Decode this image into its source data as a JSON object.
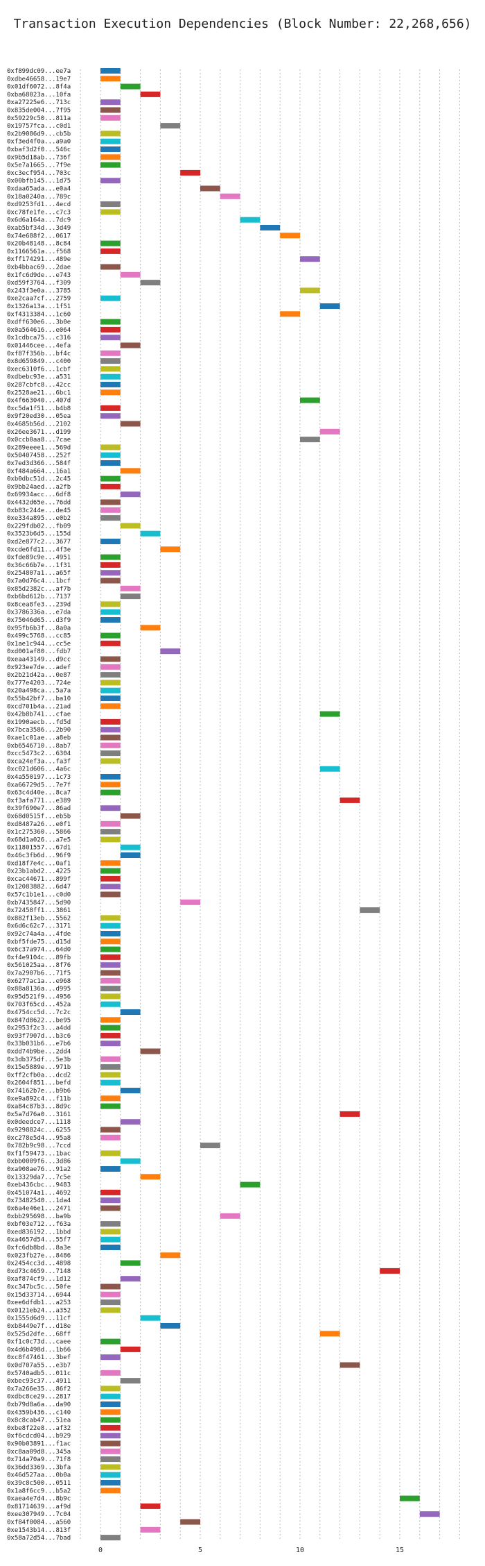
{
  "chart_data": {
    "type": "gantt",
    "title": "Transaction Execution Dependencies (Block Number: 22,268,656)",
    "xlim": [
      -2,
      18
    ],
    "xticks": [
      0,
      5,
      10,
      15
    ],
    "grid": "vertical dotted",
    "colors": [
      "#1f77b4",
      "#ff7f0e",
      "#2ca02c",
      "#d62728",
      "#9467bd",
      "#8c564b",
      "#e377c2",
      "#7f7f7f",
      "#bcbd22",
      "#17becf"
    ],
    "rows": [
      {
        "label": "0xf899dc09...ee7a",
        "start": 0,
        "color": 0
      },
      {
        "label": "0xdbe46658...19e7",
        "start": 0,
        "color": 1
      },
      {
        "label": "0x01df6072...8f4a",
        "start": 1,
        "color": 2
      },
      {
        "label": "0xba68023a...10fa",
        "start": 2,
        "color": 3
      },
      {
        "label": "0xa27225e6...713c",
        "start": 0,
        "color": 4
      },
      {
        "label": "0x835de004...7f95",
        "start": 0,
        "color": 5
      },
      {
        "label": "0x59229c50...811a",
        "start": 0,
        "color": 6
      },
      {
        "label": "0x19757fca...c0d1",
        "start": 3,
        "color": 7
      },
      {
        "label": "0x2b9086d9...cb5b",
        "start": 0,
        "color": 8
      },
      {
        "label": "0xf3ed4f0a...a9a0",
        "start": 0,
        "color": 9
      },
      {
        "label": "0xbaf3d2f0...546c",
        "start": 0,
        "color": 0
      },
      {
        "label": "0x9b5d18ab...736f",
        "start": 0,
        "color": 1
      },
      {
        "label": "0x5e7a1665...7f9e",
        "start": 0,
        "color": 2
      },
      {
        "label": "0xc3ecf954...703c",
        "start": 4,
        "color": 3
      },
      {
        "label": "0x00bfb145...1d75",
        "start": 0,
        "color": 4
      },
      {
        "label": "0xdaa65ada...e0a4",
        "start": 5,
        "color": 5
      },
      {
        "label": "0x18a0240a...789c",
        "start": 6,
        "color": 6
      },
      {
        "label": "0xd9253fd1...4ecd",
        "start": 0,
        "color": 7
      },
      {
        "label": "0xc78fe1fe...c7c3",
        "start": 0,
        "color": 8
      },
      {
        "label": "0x6d6a164a...7dc9",
        "start": 7,
        "color": 9
      },
      {
        "label": "0xab5bf34d...3d49",
        "start": 8,
        "color": 0
      },
      {
        "label": "0x74e688f2...0617",
        "start": 9,
        "color": 1
      },
      {
        "label": "0x20b48148...8c84",
        "start": 0,
        "color": 2
      },
      {
        "label": "0x1166561a...f568",
        "start": 0,
        "color": 3
      },
      {
        "label": "0xff174291...489e",
        "start": 10,
        "color": 4
      },
      {
        "label": "0xb4bbac69...2dae",
        "start": 0,
        "color": 5
      },
      {
        "label": "0x1fc6d9de...e743",
        "start": 1,
        "color": 6
      },
      {
        "label": "0xd59f3764...f309",
        "start": 2,
        "color": 7
      },
      {
        "label": "0x243f3e0a...3785",
        "start": 10,
        "color": 8
      },
      {
        "label": "0xe2caa7cf...2759",
        "start": 0,
        "color": 9
      },
      {
        "label": "0x1326a13a...1f51",
        "start": 11,
        "color": 0
      },
      {
        "label": "0xf4313384...1c60",
        "start": 9,
        "color": 1
      },
      {
        "label": "0xdff630e6...3b0e",
        "start": 0,
        "color": 2
      },
      {
        "label": "0x0a564616...e064",
        "start": 0,
        "color": 3
      },
      {
        "label": "0x1cdbca75...c316",
        "start": 0,
        "color": 4
      },
      {
        "label": "0x01446cee...4efa",
        "start": 1,
        "color": 5
      },
      {
        "label": "0xf87f356b...bf4c",
        "start": 0,
        "color": 6
      },
      {
        "label": "0x8d659849...c400",
        "start": 0,
        "color": 7
      },
      {
        "label": "0xec6310f6...1cbf",
        "start": 0,
        "color": 8
      },
      {
        "label": "0xdbebc93e...a531",
        "start": 0,
        "color": 9
      },
      {
        "label": "0x287cbfc8...42cc",
        "start": 0,
        "color": 0
      },
      {
        "label": "0x2528ae21...6bc1",
        "start": 0,
        "color": 1
      },
      {
        "label": "0x4f663040...407d",
        "start": 10,
        "color": 2
      },
      {
        "label": "0xc5da1f51...b4b8",
        "start": 0,
        "color": 3
      },
      {
        "label": "0x9f20ed30...05ea",
        "start": 0,
        "color": 4
      },
      {
        "label": "0x4685b56d...2102",
        "start": 1,
        "color": 5
      },
      {
        "label": "0x26ee3671...d199",
        "start": 11,
        "color": 6
      },
      {
        "label": "0x0ccb0aa8...7cae",
        "start": 10,
        "color": 7
      },
      {
        "label": "0x289eeee1...569d",
        "start": 0,
        "color": 8
      },
      {
        "label": "0x50407458...252f",
        "start": 0,
        "color": 9
      },
      {
        "label": "0x7ed3d366...584f",
        "start": 0,
        "color": 0
      },
      {
        "label": "0xf484a664...16a1",
        "start": 1,
        "color": 1
      },
      {
        "label": "0xb0dbc51d...2c45",
        "start": 0,
        "color": 2
      },
      {
        "label": "0x9bb24aed...a2fb",
        "start": 0,
        "color": 3
      },
      {
        "label": "0x69934acc...6df8",
        "start": 1,
        "color": 4
      },
      {
        "label": "0x4432d65e...76dd",
        "start": 0,
        "color": 5
      },
      {
        "label": "0xb83c244e...de45",
        "start": 0,
        "color": 6
      },
      {
        "label": "0xe334a895...e0b2",
        "start": 0,
        "color": 7
      },
      {
        "label": "0x229fdb02...fb09",
        "start": 1,
        "color": 8
      },
      {
        "label": "0x3523b6d5...155d",
        "start": 2,
        "color": 9
      },
      {
        "label": "0xd2e877c2...3677",
        "start": 0,
        "color": 0
      },
      {
        "label": "0xcde6fd11...4f3e",
        "start": 3,
        "color": 1
      },
      {
        "label": "0xfde89c9e...4951",
        "start": 0,
        "color": 2
      },
      {
        "label": "0x36c66b7e...1f31",
        "start": 0,
        "color": 3
      },
      {
        "label": "0x254807a1...a65f",
        "start": 0,
        "color": 4
      },
      {
        "label": "0x7a0d76c4...1bcf",
        "start": 0,
        "color": 5
      },
      {
        "label": "0x85d2382c...af7b",
        "start": 1,
        "color": 6
      },
      {
        "label": "0xb6bd612b...7137",
        "start": 1,
        "color": 7
      },
      {
        "label": "0x8cea8fe3...239d",
        "start": 0,
        "color": 8
      },
      {
        "label": "0x3786336a...e7da",
        "start": 0,
        "color": 9
      },
      {
        "label": "0x75046d65...d3f9",
        "start": 0,
        "color": 0
      },
      {
        "label": "0x95fb6b3f...8a0a",
        "start": 2,
        "color": 1
      },
      {
        "label": "0x499c5768...cc85",
        "start": 0,
        "color": 2
      },
      {
        "label": "0x1ae1c944...cc5e",
        "start": 0,
        "color": 3
      },
      {
        "label": "0xd001af80...fdb7",
        "start": 3,
        "color": 4
      },
      {
        "label": "0xeaa43149...d9cc",
        "start": 0,
        "color": 5
      },
      {
        "label": "0x923ee7de...adef",
        "start": 0,
        "color": 6
      },
      {
        "label": "0x2b21d42a...0e87",
        "start": 0,
        "color": 7
      },
      {
        "label": "0x777e4203...724e",
        "start": 0,
        "color": 8
      },
      {
        "label": "0x20a498ca...5a7a",
        "start": 0,
        "color": 9
      },
      {
        "label": "0x55b42bf7...ba10",
        "start": 0,
        "color": 0
      },
      {
        "label": "0xcd701b4a...21ad",
        "start": 0,
        "color": 1
      },
      {
        "label": "0x42b8b741...cfae",
        "start": 11,
        "color": 2
      },
      {
        "label": "0x1990aecb...fd5d",
        "start": 0,
        "color": 3
      },
      {
        "label": "0x7bca3586...2b90",
        "start": 0,
        "color": 4
      },
      {
        "label": "0xae1c01ae...a8eb",
        "start": 0,
        "color": 5
      },
      {
        "label": "0xb6546710...8ab7",
        "start": 0,
        "color": 6
      },
      {
        "label": "0xcc5473c2...6304",
        "start": 0,
        "color": 7
      },
      {
        "label": "0xca24ef3a...fa3f",
        "start": 0,
        "color": 8
      },
      {
        "label": "0xc021d606...4a6c",
        "start": 11,
        "color": 9
      },
      {
        "label": "0x4a550197...1c73",
        "start": 0,
        "color": 0
      },
      {
        "label": "0xa66729d5...7e7f",
        "start": 0,
        "color": 1
      },
      {
        "label": "0x63c4d40e...8ca7",
        "start": 0,
        "color": 2
      },
      {
        "label": "0xf3afa771...e389",
        "start": 12,
        "color": 3
      },
      {
        "label": "0x39f690e7...86ad",
        "start": 0,
        "color": 4
      },
      {
        "label": "0x68d0515f...eb5b",
        "start": 1,
        "color": 5
      },
      {
        "label": "0xd8487a26...e0f1",
        "start": 0,
        "color": 6
      },
      {
        "label": "0x1c275360...5866",
        "start": 0,
        "color": 7
      },
      {
        "label": "0x68d1a026...a7e5",
        "start": 0,
        "color": 8
      },
      {
        "label": "0x11801557...67d1",
        "start": 1,
        "color": 9
      },
      {
        "label": "0x46c3fb6d...96f9",
        "start": 1,
        "color": 0
      },
      {
        "label": "0xd18f7e4c...0af1",
        "start": 0,
        "color": 1
      },
      {
        "label": "0x23b1abd2...4225",
        "start": 0,
        "color": 2
      },
      {
        "label": "0xcac44671...899f",
        "start": 0,
        "color": 3
      },
      {
        "label": "0x12083882...6d47",
        "start": 0,
        "color": 4
      },
      {
        "label": "0x57c1b1e1...c0d0",
        "start": 0,
        "color": 5
      },
      {
        "label": "0xb7435847...5d90",
        "start": 4,
        "color": 6
      },
      {
        "label": "0x72458ff1...3861",
        "start": 13,
        "color": 7
      },
      {
        "label": "0x882f13eb...5562",
        "start": 0,
        "color": 8
      },
      {
        "label": "0x6d6c62c7...3171",
        "start": 0,
        "color": 9
      },
      {
        "label": "0x92c74a4a...4fde",
        "start": 0,
        "color": 0
      },
      {
        "label": "0xbf5fde75...d15d",
        "start": 0,
        "color": 1
      },
      {
        "label": "0x6c37a974...64d0",
        "start": 0,
        "color": 2
      },
      {
        "label": "0xf4e9104c...89fb",
        "start": 0,
        "color": 3
      },
      {
        "label": "0x561025aa...8f76",
        "start": 0,
        "color": 4
      },
      {
        "label": "0x7a2907b6...71f5",
        "start": 0,
        "color": 5
      },
      {
        "label": "0x6277ac1a...e968",
        "start": 0,
        "color": 6
      },
      {
        "label": "0x88a8136a...d995",
        "start": 0,
        "color": 7
      },
      {
        "label": "0x95d521f9...4956",
        "start": 0,
        "color": 8
      },
      {
        "label": "0x703f65cd...452a",
        "start": 0,
        "color": 9
      },
      {
        "label": "0x4754cc5d...7c2c",
        "start": 1,
        "color": 0
      },
      {
        "label": "0x847d8622...be95",
        "start": 0,
        "color": 1
      },
      {
        "label": "0x2953f2c3...a4dd",
        "start": 0,
        "color": 2
      },
      {
        "label": "0x93f7907d...b3c6",
        "start": 0,
        "color": 3
      },
      {
        "label": "0x33b031b6...e7b6",
        "start": 0,
        "color": 4
      },
      {
        "label": "0xdd74b9be...2dd4",
        "start": 2,
        "color": 5
      },
      {
        "label": "0x3db375df...5e3b",
        "start": 0,
        "color": 6
      },
      {
        "label": "0x15e5889e...971b",
        "start": 0,
        "color": 7
      },
      {
        "label": "0xff2cfb0a...dcd2",
        "start": 0,
        "color": 8
      },
      {
        "label": "0x2604f851...befd",
        "start": 0,
        "color": 9
      },
      {
        "label": "0x74162b7e...b9b6",
        "start": 1,
        "color": 0
      },
      {
        "label": "0xe9a892c4...f11b",
        "start": 0,
        "color": 1
      },
      {
        "label": "0xa84c87b3...8d9c",
        "start": 0,
        "color": 2
      },
      {
        "label": "0x5a7d76a0...3161",
        "start": 12,
        "color": 3
      },
      {
        "label": "0x0deedce7...1118",
        "start": 1,
        "color": 4
      },
      {
        "label": "0x9298824c...6255",
        "start": 0,
        "color": 5
      },
      {
        "label": "0xc278e5d4...95a8",
        "start": 0,
        "color": 6
      },
      {
        "label": "0x782b9c98...7ccd",
        "start": 5,
        "color": 7
      },
      {
        "label": "0xf1f59473...1bac",
        "start": 0,
        "color": 8
      },
      {
        "label": "0xbb0009f6...3d86",
        "start": 1,
        "color": 9
      },
      {
        "label": "0xa908ae76...91a2",
        "start": 0,
        "color": 0
      },
      {
        "label": "0x13329da7...7c5e",
        "start": 2,
        "color": 1
      },
      {
        "label": "0xeb436cbc...9483",
        "start": 7,
        "color": 2
      },
      {
        "label": "0x451074a1...4692",
        "start": 0,
        "color": 3
      },
      {
        "label": "0x73482540...1da4",
        "start": 0,
        "color": 4
      },
      {
        "label": "0x6a4e46e1...2471",
        "start": 0,
        "color": 5
      },
      {
        "label": "0xbb295698...ba9b",
        "start": 6,
        "color": 6
      },
      {
        "label": "0xbf03e712...f63a",
        "start": 0,
        "color": 7
      },
      {
        "label": "0xed836192...1bbd",
        "start": 0,
        "color": 8
      },
      {
        "label": "0xa4657d54...55f7",
        "start": 0,
        "color": 9
      },
      {
        "label": "0xfc6db8bd...8a3e",
        "start": 0,
        "color": 0
      },
      {
        "label": "0x023fb27e...8486",
        "start": 3,
        "color": 1
      },
      {
        "label": "0x2454cc3d...4898",
        "start": 1,
        "color": 2
      },
      {
        "label": "0xd73c4659...7148",
        "start": 14,
        "color": 3
      },
      {
        "label": "0xaf874cf9...1d12",
        "start": 1,
        "color": 4
      },
      {
        "label": "0xc347bc5c...50fe",
        "start": 0,
        "color": 5
      },
      {
        "label": "0x15d33714...6944",
        "start": 0,
        "color": 6
      },
      {
        "label": "0xee6dfdb1...a253",
        "start": 0,
        "color": 7
      },
      {
        "label": "0x0121eb24...a352",
        "start": 0,
        "color": 8
      },
      {
        "label": "0x1555d6d9...11cf",
        "start": 2,
        "color": 9
      },
      {
        "label": "0xb8449e7f...d18e",
        "start": 3,
        "color": 0
      },
      {
        "label": "0x525d2dfe...68ff",
        "start": 11,
        "color": 1
      },
      {
        "label": "0xf1c0c73d...caee",
        "start": 0,
        "color": 2
      },
      {
        "label": "0x4d6b498d...1b66",
        "start": 1,
        "color": 3
      },
      {
        "label": "0xc8f47461...3bef",
        "start": 0,
        "color": 4
      },
      {
        "label": "0x0d707a55...e3b7",
        "start": 12,
        "color": 5
      },
      {
        "label": "0x5740adb5...011c",
        "start": 0,
        "color": 6
      },
      {
        "label": "0xbec93c37...4911",
        "start": 1,
        "color": 7
      },
      {
        "label": "0x7a266e35...86f2",
        "start": 0,
        "color": 8
      },
      {
        "label": "0xdbc8ce29...2817",
        "start": 0,
        "color": 9
      },
      {
        "label": "0xb79d8a6a...da90",
        "start": 0,
        "color": 0
      },
      {
        "label": "0x4359b436...c140",
        "start": 0,
        "color": 1
      },
      {
        "label": "0x8c8cab47...51ea",
        "start": 0,
        "color": 2
      },
      {
        "label": "0xbe8f22e8...af32",
        "start": 0,
        "color": 3
      },
      {
        "label": "0xf6cdcd04...b929",
        "start": 0,
        "color": 4
      },
      {
        "label": "0x90b03891...f1ac",
        "start": 0,
        "color": 5
      },
      {
        "label": "0xc8aa09d8...345a",
        "start": 0,
        "color": 6
      },
      {
        "label": "0x714a70a9...71f8",
        "start": 0,
        "color": 7
      },
      {
        "label": "0x36dd3369...3bfa",
        "start": 0,
        "color": 8
      },
      {
        "label": "0x46d527aa...0b0a",
        "start": 0,
        "color": 9
      },
      {
        "label": "0x39c8c500...0511",
        "start": 0,
        "color": 0
      },
      {
        "label": "0x1a8f6cc9...b5a2",
        "start": 0,
        "color": 1
      },
      {
        "label": "0xaea4e7d4...8b9c",
        "start": 15,
        "color": 2
      },
      {
        "label": "0x81714639...af9d",
        "start": 2,
        "color": 3
      },
      {
        "label": "0xee307949...7c04",
        "start": 16,
        "color": 4
      },
      {
        "label": "0xf84f0084...a560",
        "start": 4,
        "color": 5
      },
      {
        "label": "0xe1543b14...813f",
        "start": 2,
        "color": 6
      },
      {
        "label": "0x58a72d54...7bad",
        "start": 0,
        "color": 7
      }
    ]
  }
}
